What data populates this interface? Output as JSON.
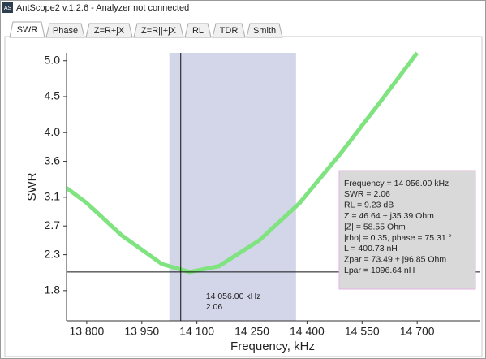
{
  "window": {
    "title": "AntScope2 v.1.2.6 - Analyzer not connected",
    "icon": "AS"
  },
  "tabs": [
    "SWR",
    "Phase",
    "Z=R+jX",
    "Z=R||+jX",
    "RL",
    "TDR",
    "Smith"
  ],
  "chart_data": {
    "type": "line",
    "x_label": "Frequency, kHz",
    "y_label": "SWR",
    "x": [
      13745,
      13800,
      13895,
      14005,
      14080,
      14160,
      14270,
      14380,
      14490,
      14600,
      14700
    ],
    "series": [
      {
        "name": "SWR",
        "color": "#7fe37f",
        "values": [
          3.23,
          3.02,
          2.57,
          2.17,
          2.06,
          2.14,
          2.5,
          3.02,
          3.7,
          4.43,
          5.11
        ]
      }
    ],
    "xlim": [
      13745,
      14872
    ],
    "ylim": [
      1.38,
      5.11
    ],
    "xticks": [
      {
        "value": 13800,
        "label": "13 800"
      },
      {
        "value": 13950,
        "label": "13 950"
      },
      {
        "value": 14100,
        "label": "14 100"
      },
      {
        "value": 14250,
        "label": "14 250"
      },
      {
        "value": 14400,
        "label": "14 400"
      },
      {
        "value": 14550,
        "label": "14 550"
      },
      {
        "value": 14700,
        "label": "14 700"
      }
    ],
    "yticks": [
      1.8,
      2.3,
      2.7,
      3.1,
      3.6,
      {
        "value": 4,
        "label": "4.0"
      },
      4.5,
      {
        "value": 5,
        "label": "5.0"
      }
    ],
    "band": [
      14025,
      14370
    ],
    "band_color": "#d3d5e8",
    "marker": {
      "x": 14056,
      "y": 2.06,
      "labels": [
        "14 056.00 kHz",
        "2.06"
      ]
    },
    "info_box": [
      "Frequency = 14 056.00 kHz",
      "SWR = 2.06",
      "RL = 9.23 dB",
      "Z = 46.64 + j35.39 Ohm",
      "|Z| = 58.55 Ohm",
      "|rho| = 0.35, phase = 75.31 °",
      "L = 400.73 nH",
      "Zpar = 73.49 + j96.85 Ohm",
      "Lpar = 1096.64 nH"
    ]
  }
}
